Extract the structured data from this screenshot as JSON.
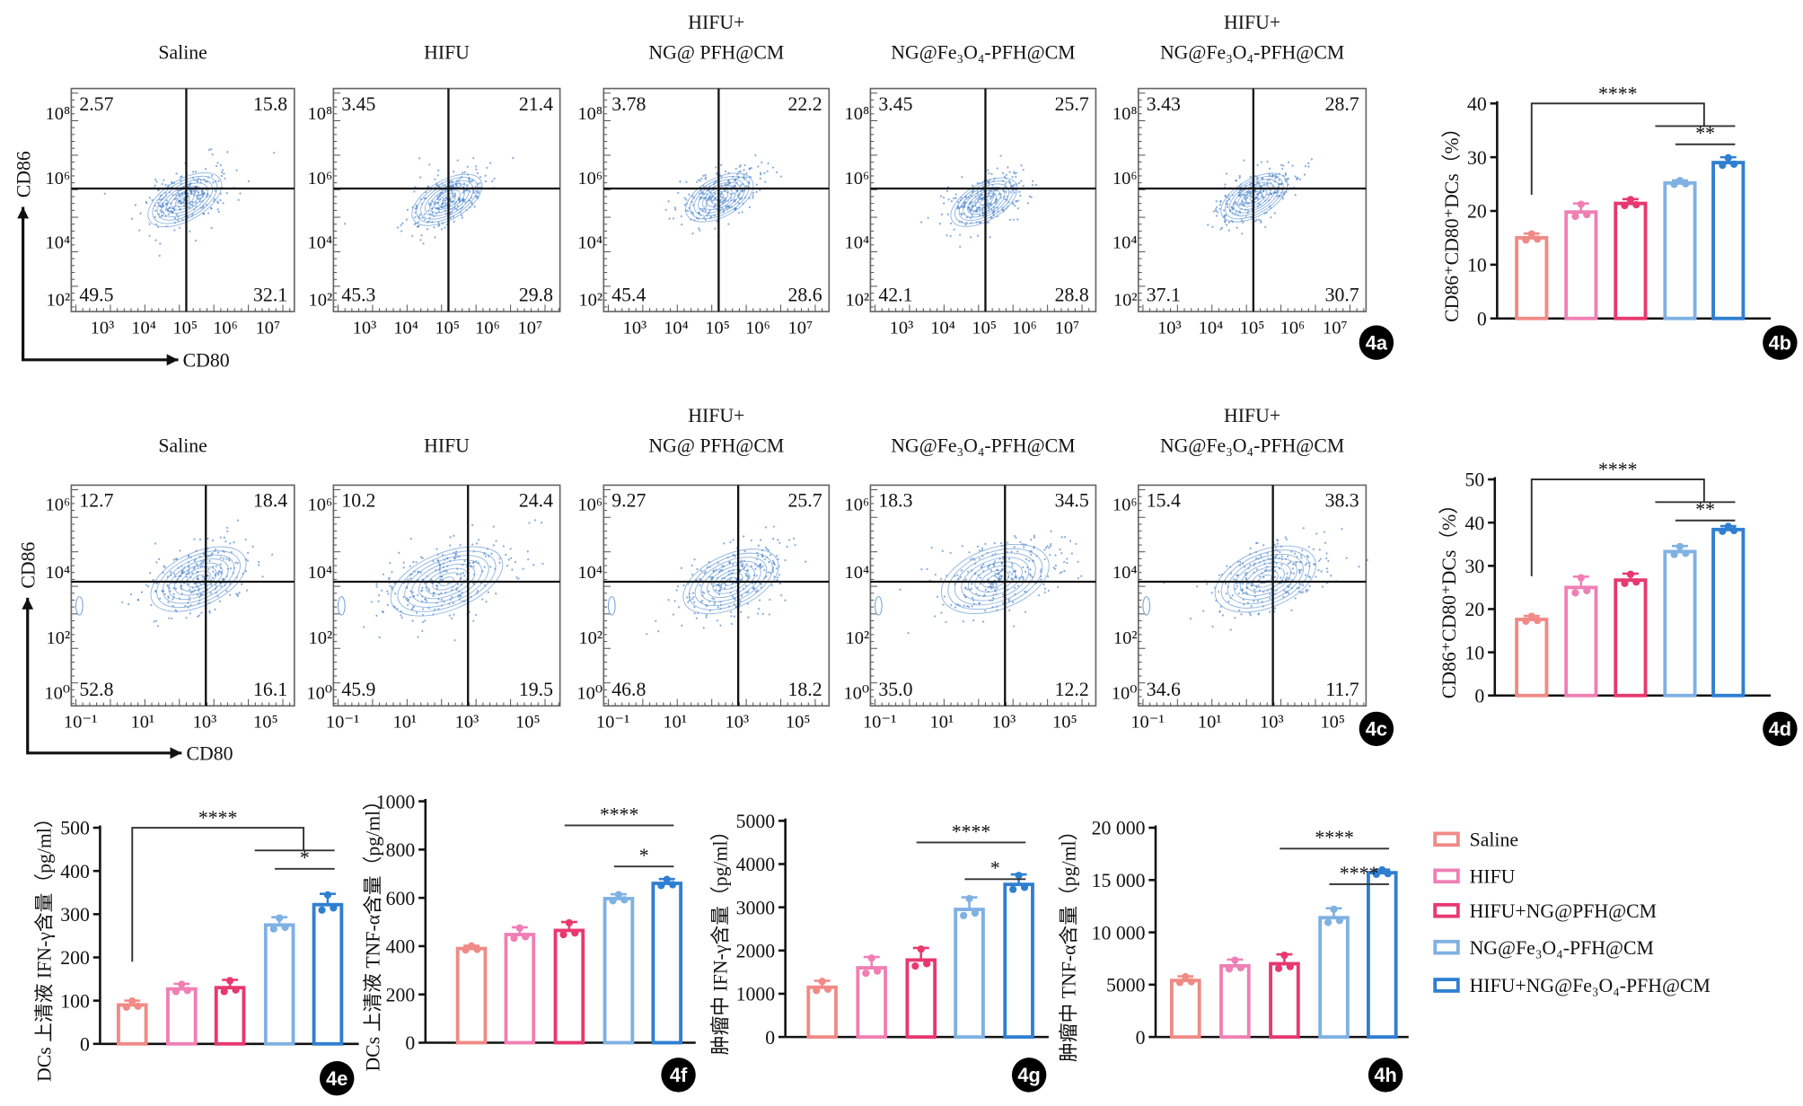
{
  "figure_labels": {
    "a": "4a",
    "b": "4b",
    "c": "4c",
    "d": "4d",
    "e": "4e",
    "f": "4f",
    "g": "4g",
    "h": "4h"
  },
  "colors": {
    "saline": "#f08a86",
    "hifu": "#ef7fb4",
    "hifu_ng_pfh": "#e8386f",
    "ng_fe3o4": "#7fb1e3",
    "hifu_ng_fe3o4": "#2f7fd1",
    "contour": "#2f6fbf"
  },
  "flow_rows": [
    {
      "x_axis_label": "CD80",
      "y_axis_label": "CD86",
      "x_ticks": [
        "10³",
        "10⁴",
        "10⁵",
        "10⁶",
        "10⁷"
      ],
      "y_ticks": [
        "10⁸",
        "10⁶",
        "10⁴",
        "10²"
      ],
      "panels": [
        {
          "title_lines": [
            "",
            "Saline"
          ],
          "quadrants": {
            "ul": "2.57",
            "ur": "15.8",
            "ll": "49.5",
            "lr": "32.1"
          }
        },
        {
          "title_lines": [
            "",
            "HIFU"
          ],
          "quadrants": {
            "ul": "3.45",
            "ur": "21.4",
            "ll": "45.3",
            "lr": "29.8"
          }
        },
        {
          "title_lines": [
            "HIFU+",
            "NG@ PFH@CM"
          ],
          "quadrants": {
            "ul": "3.78",
            "ur": "22.2",
            "ll": "45.4",
            "lr": "28.6"
          }
        },
        {
          "title_lines": [
            "",
            "NG@Fe₃O₄-PFH@CM"
          ],
          "quadrants": {
            "ul": "3.45",
            "ur": "25.7",
            "ll": "42.1",
            "lr": "28.8"
          }
        },
        {
          "title_lines": [
            "HIFU+",
            "NG@Fe₃O₄-PFH@CM"
          ],
          "quadrants": {
            "ul": "3.43",
            "ur": "28.7",
            "ll": "37.1",
            "lr": "30.7"
          }
        }
      ]
    },
    {
      "x_axis_label": "CD80",
      "y_axis_label": "CD86",
      "x_ticks": [
        "10⁻¹",
        "10¹",
        "10³",
        "10⁵"
      ],
      "y_ticks": [
        "10⁶",
        "10⁴",
        "10²",
        "10⁰"
      ],
      "panels": [
        {
          "title_lines": [
            "",
            "Saline"
          ],
          "quadrants": {
            "ul": "12.7",
            "ur": "18.4",
            "ll": "52.8",
            "lr": "16.1"
          }
        },
        {
          "title_lines": [
            "",
            "HIFU"
          ],
          "quadrants": {
            "ul": "10.2",
            "ur": "24.4",
            "ll": "45.9",
            "lr": "19.5"
          }
        },
        {
          "title_lines": [
            "HIFU+",
            "NG@ PFH@CM"
          ],
          "quadrants": {
            "ul": "9.27",
            "ur": "25.7",
            "ll": "46.8",
            "lr": "18.2"
          }
        },
        {
          "title_lines": [
            "",
            "NG@Fe₃O₄-PFH@CM"
          ],
          "quadrants": {
            "ul": "18.3",
            "ur": "34.5",
            "ll": "35.0",
            "lr": "12.2"
          }
        },
        {
          "title_lines": [
            "HIFU+",
            "NG@Fe₃O₄-PFH@CM"
          ],
          "quadrants": {
            "ul": "15.4",
            "ur": "38.3",
            "ll": "34.6",
            "lr": "11.7"
          }
        }
      ]
    }
  ],
  "legend": [
    {
      "label": "Saline",
      "color": "#f08a86"
    },
    {
      "label": "HIFU",
      "color": "#ef7fb4"
    },
    {
      "label": "HIFU+NG@PFH@CM",
      "color": "#e8386f"
    },
    {
      "label": "NG@Fe₃O₄-PFH@CM",
      "color": "#7fb1e3"
    },
    {
      "label": "HIFU+NG@Fe₃O₄-PFH@CM",
      "color": "#2f7fd1"
    }
  ],
  "chart_data": [
    {
      "id": "4b",
      "type": "bar",
      "categories": [
        "Saline",
        "HIFU",
        "HIFU+NG@PFH@CM",
        "NG@Fe₃O₄-PFH@CM",
        "HIFU+NG@Fe₃O₄-PFH@CM"
      ],
      "values": [
        15.0,
        19.8,
        21.4,
        25.2,
        29.0
      ],
      "errors": [
        0.8,
        1.6,
        0.8,
        0.5,
        1.0
      ],
      "ylabel": "CD86⁺CD80⁺DCs（%）",
      "ylim": [
        0,
        40
      ],
      "yticks": [
        "0",
        "10",
        "20",
        "30",
        "40"
      ],
      "ytick_values": [
        0,
        10,
        20,
        30,
        40
      ],
      "significance": [
        {
          "from": 0,
          "to": [
            3,
            4
          ],
          "label": "****"
        },
        {
          "from": 3,
          "to": 4,
          "label": "**"
        }
      ]
    },
    {
      "id": "4d",
      "type": "bar",
      "categories": [
        "Saline",
        "HIFU",
        "HIFU+NG@PFH@CM",
        "NG@Fe₃O₄-PFH@CM",
        "HIFU+NG@Fe₃O₄-PFH@CM"
      ],
      "values": [
        17.6,
        25.0,
        26.7,
        33.3,
        38.4
      ],
      "errors": [
        0.8,
        2.5,
        1.5,
        1.3,
        0.8
      ],
      "ylabel": "CD86⁺CD80⁺DCs（%）",
      "ylim": [
        0,
        50
      ],
      "yticks": [
        "0",
        "10",
        "20",
        "30",
        "40",
        "50"
      ],
      "ytick_values": [
        0,
        10,
        20,
        30,
        40,
        50
      ],
      "significance": [
        {
          "from": 0,
          "to": [
            3,
            4
          ],
          "label": "****"
        },
        {
          "from": 3,
          "to": 4,
          "label": "**"
        }
      ]
    },
    {
      "id": "4e",
      "type": "bar",
      "categories": [
        "Saline",
        "HIFU",
        "HIFU+NG@PFH@CM",
        "NG@Fe₃O₄-PFH@CM",
        "HIFU+NG@Fe₃O₄-PFH@CM"
      ],
      "values": [
        90,
        127,
        130,
        275,
        322
      ],
      "errors": [
        10,
        12,
        18,
        18,
        25
      ],
      "ylabel": "DCs 上清液 IFN-γ含量（pg/ml）",
      "ylim": [
        0,
        500
      ],
      "yticks": [
        "0",
        "100",
        "200",
        "300",
        "400",
        "500"
      ],
      "ytick_values": [
        0,
        100,
        200,
        300,
        400,
        500
      ],
      "significance": [
        {
          "from": 0,
          "to": [
            3,
            4
          ],
          "label": "****"
        },
        {
          "from": 3,
          "to": 4,
          "label": "*"
        }
      ]
    },
    {
      "id": "4f",
      "type": "bar",
      "categories": [
        "Saline",
        "HIFU",
        "HIFU+NG@PFH@CM",
        "NG@Fe₃O₄-PFH@CM",
        "HIFU+NG@Fe₃O₄-PFH@CM"
      ],
      "values": [
        390,
        448,
        465,
        597,
        660
      ],
      "errors": [
        12,
        30,
        35,
        18,
        18
      ],
      "ylabel": "DCs 上清液 TNF-α含量（pg/ml）",
      "ylim": [
        0,
        1000
      ],
      "yticks": [
        "0",
        "200",
        "400",
        "600",
        "800",
        "1000"
      ],
      "ytick_values": [
        0,
        200,
        400,
        600,
        800,
        1000
      ],
      "significance": [
        {
          "from": 2,
          "to": 4,
          "label": "****"
        },
        {
          "from": 3,
          "to": 4,
          "label": "*"
        }
      ]
    },
    {
      "id": "4g",
      "type": "bar",
      "categories": [
        "Saline",
        "HIFU",
        "HIFU+NG@PFH@CM",
        "NG@Fe₃O₄-PFH@CM",
        "HIFU+NG@Fe₃O₄-PFH@CM"
      ],
      "values": [
        1150,
        1600,
        1780,
        2950,
        3530
      ],
      "errors": [
        150,
        250,
        280,
        280,
        230
      ],
      "ylabel": "肿瘤中 IFN-γ含量（pg/ml）",
      "ylim": [
        0,
        5000
      ],
      "yticks": [
        "0",
        "1000",
        "2000",
        "3000",
        "4000",
        "5000"
      ],
      "ytick_values": [
        0,
        1000,
        2000,
        3000,
        4000,
        5000
      ],
      "significance": [
        {
          "from": 2,
          "to": 4,
          "label": "****"
        },
        {
          "from": 3,
          "to": 4,
          "label": "*"
        }
      ]
    },
    {
      "id": "4h",
      "type": "bar",
      "categories": [
        "Saline",
        "HIFU",
        "HIFU+NG@PFH@CM",
        "NG@Fe₃O₄-PFH@CM",
        "HIFU+NG@Fe₃O₄-PFH@CM"
      ],
      "values": [
        5400,
        6800,
        7000,
        11400,
        15700
      ],
      "errors": [
        400,
        600,
        900,
        900,
        300
      ],
      "ylabel": "肿瘤中 TNF-α含量（pg/ml）",
      "ylim": [
        0,
        20000
      ],
      "yticks": [
        "0",
        "5000",
        "10 000",
        "15 000",
        "20 000"
      ],
      "ytick_values": [
        0,
        5000,
        10000,
        15000,
        20000
      ],
      "significance": [
        {
          "from": 2,
          "to": 4,
          "label": "****"
        },
        {
          "from": 3,
          "to": 4,
          "label": "****"
        }
      ]
    }
  ]
}
